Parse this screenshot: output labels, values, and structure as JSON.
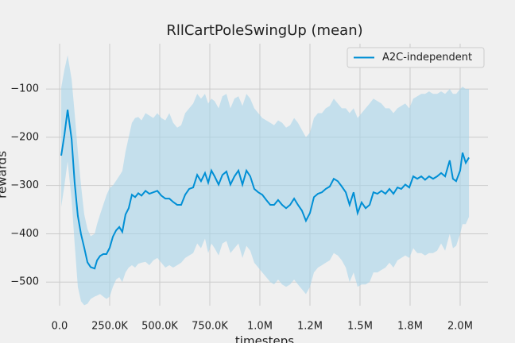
{
  "chart_data": {
    "type": "line",
    "title": "RllCartPoleSwingUp (mean)",
    "x_label": "timesteps",
    "y_label": "rewards",
    "x": [
      8000,
      24000,
      40000,
      60000,
      75000,
      91000,
      107000,
      123000,
      139000,
      155000,
      175000,
      187000,
      202000,
      218000,
      234000,
      250000,
      266000,
      282000,
      298000,
      313000,
      329000,
      345000,
      361000,
      377000,
      393000,
      409000,
      429000,
      448000,
      468000,
      488000,
      508000,
      528000,
      548000,
      567000,
      587000,
      607000,
      627000,
      647000,
      667000,
      687000,
      706000,
      726000,
      742000,
      758000,
      774000,
      794000,
      813000,
      833000,
      853000,
      873000,
      893000,
      913000,
      933000,
      952000,
      972000,
      992000,
      1012000,
      1032000,
      1052000,
      1071000,
      1091000,
      1111000,
      1131000,
      1151000,
      1171000,
      1190000,
      1210000,
      1230000,
      1250000,
      1270000,
      1290000,
      1310000,
      1329000,
      1349000,
      1369000,
      1389000,
      1409000,
      1429000,
      1448000,
      1468000,
      1488000,
      1508000,
      1528000,
      1548000,
      1567000,
      1587000,
      1607000,
      1627000,
      1647000,
      1667000,
      1687000,
      1706000,
      1726000,
      1746000,
      1766000,
      1786000,
      1806000,
      1825000,
      1845000,
      1865000,
      1885000,
      1905000,
      1925000,
      1948000,
      1964000,
      1980000,
      2000000,
      2012000,
      2028000,
      2044000
    ],
    "series": [
      {
        "name": "A2C-independent",
        "color": "#008fd5",
        "band_color": "#a6d3ea",
        "values": [
          -238,
          -195,
          -143,
          -204,
          -294,
          -363,
          -401,
          -429,
          -459,
          -469,
          -472,
          -455,
          -446,
          -442,
          -442,
          -429,
          -406,
          -393,
          -386,
          -396,
          -360,
          -347,
          -319,
          -324,
          -316,
          -321,
          -311,
          -317,
          -314,
          -311,
          -321,
          -327,
          -327,
          -334,
          -340,
          -340,
          -319,
          -307,
          -304,
          -278,
          -291,
          -274,
          -294,
          -269,
          -281,
          -298,
          -278,
          -271,
          -298,
          -281,
          -269,
          -298,
          -269,
          -281,
          -307,
          -314,
          -319,
          -330,
          -340,
          -340,
          -330,
          -340,
          -347,
          -340,
          -327,
          -340,
          -352,
          -373,
          -357,
          -324,
          -317,
          -314,
          -307,
          -302,
          -286,
          -291,
          -302,
          -314,
          -340,
          -314,
          -357,
          -335,
          -347,
          -340,
          -314,
          -317,
          -311,
          -317,
          -307,
          -317,
          -304,
          -307,
          -298,
          -304,
          -281,
          -286,
          -281,
          -288,
          -281,
          -286,
          -281,
          -274,
          -281,
          -248,
          -286,
          -291,
          -269,
          -232,
          -253,
          -242
        ],
        "upper": [
          -97,
          -60,
          -30,
          -80,
          -150,
          -230,
          -300,
          -360,
          -390,
          -405,
          -400,
          -380,
          -360,
          -340,
          -320,
          -305,
          -300,
          -290,
          -280,
          -270,
          -230,
          -200,
          -170,
          -160,
          -158,
          -165,
          -150,
          -155,
          -160,
          -150,
          -160,
          -165,
          -150,
          -170,
          -180,
          -175,
          -150,
          -140,
          -130,
          -110,
          -120,
          -110,
          -130,
          -120,
          -125,
          -140,
          -115,
          -110,
          -140,
          -120,
          -115,
          -135,
          -110,
          -120,
          -140,
          -150,
          -160,
          -165,
          -170,
          -175,
          -165,
          -170,
          -180,
          -175,
          -160,
          -170,
          -185,
          -200,
          -190,
          -160,
          -150,
          -150,
          -140,
          -135,
          -120,
          -130,
          -140,
          -140,
          -150,
          -140,
          -160,
          -150,
          -140,
          -130,
          -120,
          -125,
          -130,
          -140,
          -140,
          -150,
          -140,
          -135,
          -130,
          -140,
          -120,
          -115,
          -110,
          -110,
          -105,
          -110,
          -110,
          -105,
          -110,
          -100,
          -110,
          -110,
          -100,
          -95,
          -100,
          -100
        ],
        "lower": [
          -344,
          -300,
          -250,
          -330,
          -420,
          -510,
          -540,
          -548,
          -545,
          -535,
          -530,
          -528,
          -525,
          -530,
          -535,
          -530,
          -510,
          -495,
          -490,
          -500,
          -480,
          -470,
          -465,
          -470,
          -462,
          -460,
          -458,
          -465,
          -455,
          -450,
          -460,
          -470,
          -465,
          -470,
          -465,
          -460,
          -450,
          -445,
          -440,
          -420,
          -430,
          -410,
          -440,
          -420,
          -430,
          -445,
          -420,
          -415,
          -440,
          -430,
          -420,
          -450,
          -425,
          -435,
          -460,
          -470,
          -480,
          -490,
          -500,
          -505,
          -495,
          -505,
          -510,
          -505,
          -495,
          -505,
          -515,
          -525,
          -510,
          -480,
          -470,
          -465,
          -460,
          -455,
          -440,
          -445,
          -455,
          -470,
          -500,
          -480,
          -510,
          -505,
          -505,
          -500,
          -480,
          -480,
          -475,
          -470,
          -460,
          -470,
          -455,
          -450,
          -445,
          -450,
          -430,
          -440,
          -440,
          -445,
          -440,
          -440,
          -435,
          -420,
          -435,
          -400,
          -430,
          -425,
          -400,
          -380,
          -380,
          -365
        ]
      }
    ],
    "xlim": [
      -67500,
      2139000
    ],
    "ylim": [
      -549,
      -6
    ],
    "xticks": [
      {
        "value": 0,
        "label": "0.0"
      },
      {
        "value": 250000,
        "label": "250.0K"
      },
      {
        "value": 500000,
        "label": "500.0K"
      },
      {
        "value": 750000,
        "label": "750.0K"
      },
      {
        "value": 1000000,
        "label": "1.0M"
      },
      {
        "value": 1250000,
        "label": "1.2M"
      },
      {
        "value": 1500000,
        "label": "1.5M"
      },
      {
        "value": 1750000,
        "label": "1.8M"
      },
      {
        "value": 2000000,
        "label": "2.0M"
      }
    ],
    "yticks": [
      {
        "value": -500,
        "label": "−500"
      },
      {
        "value": -400,
        "label": "−400"
      },
      {
        "value": -300,
        "label": "−300"
      },
      {
        "value": -200,
        "label": "−200"
      },
      {
        "value": -100,
        "label": "−100"
      }
    ],
    "grid": true,
    "legend": "upper right"
  }
}
